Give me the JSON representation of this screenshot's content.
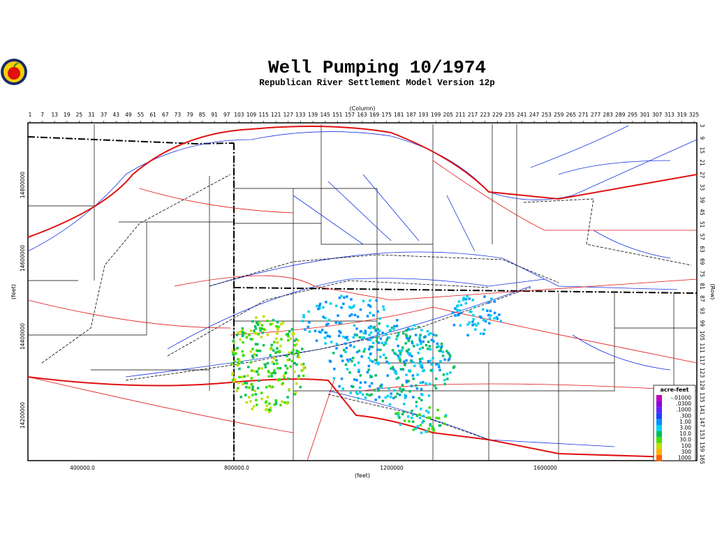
{
  "header": {
    "title": "Well Pumping 10/1974",
    "subtitle": "Republican River Settlement Model Version 12p"
  },
  "map": {
    "column_title": "(Column)",
    "columns": [
      "1",
      "7",
      "13",
      "19",
      "25",
      "31",
      "37",
      "43",
      "49",
      "55",
      "61",
      "67",
      "73",
      "79",
      "85",
      "91",
      "97",
      "103",
      "109",
      "115",
      "121",
      "127",
      "133",
      "139",
      "145",
      "151",
      "157",
      "163",
      "169",
      "175",
      "181",
      "187",
      "193",
      "199",
      "205",
      "211",
      "217",
      "223",
      "229",
      "235",
      "241",
      "247",
      "253",
      "259",
      "265",
      "271",
      "277",
      "283",
      "289",
      "295",
      "301",
      "307",
      "313",
      "319",
      "325"
    ],
    "row_title": "(Row)",
    "rows": [
      "3",
      "9",
      "15",
      "21",
      "27",
      "33",
      "39",
      "45",
      "51",
      "57",
      "63",
      "69",
      "75",
      "81",
      "87",
      "93",
      "99",
      "105",
      "111",
      "117",
      "123",
      "129",
      "135",
      "141",
      "147",
      "153",
      "159",
      "165"
    ],
    "x_title": "(feet)",
    "x_labels": [
      "400000.0",
      "800000.0",
      "1200000",
      "1600000"
    ],
    "y_title": "(feet)",
    "y_labels": [
      "14800000",
      "14600000",
      "14400000",
      "14200000"
    ]
  },
  "legend": {
    "title": "acre-feet",
    "entries": [
      {
        "label": "-.01000",
        "color": "#c000c0"
      },
      {
        "label": ".0300",
        "color": "#9000e0"
      },
      {
        "label": ".1000",
        "color": "#6020ff"
      },
      {
        "label": ".300",
        "color": "#2040ff"
      },
      {
        "label": "1.00",
        "color": "#0090ff"
      },
      {
        "label": "3.00",
        "color": "#00d0f0"
      },
      {
        "label": "10.0",
        "color": "#00c060"
      },
      {
        "label": "30.0",
        "color": "#40e000"
      },
      {
        "label": "100",
        "color": "#c0e000"
      },
      {
        "label": "300",
        "color": "#ffb000"
      },
      {
        "label": "1000",
        "color": "#ff6000"
      }
    ]
  }
}
